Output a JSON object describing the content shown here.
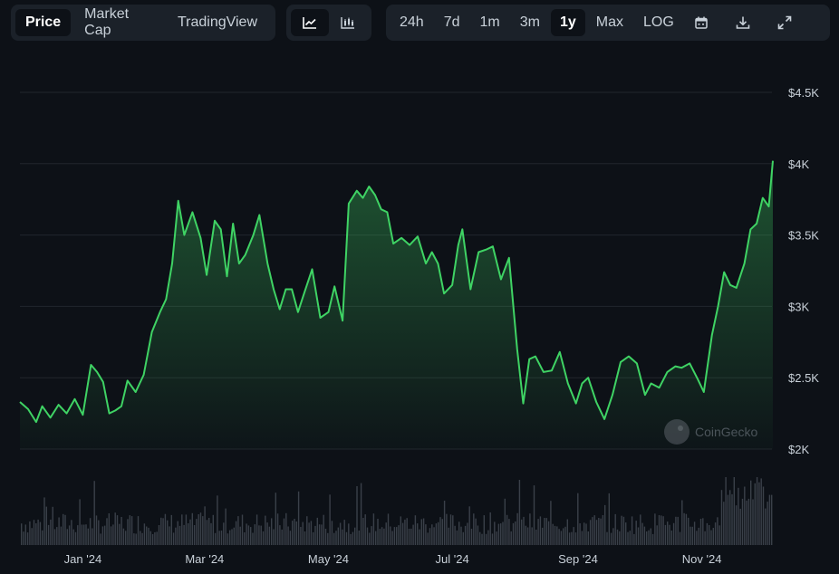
{
  "toolbar": {
    "view_tabs": [
      {
        "label": "Price",
        "active": true
      },
      {
        "label": "Market Cap",
        "active": false
      },
      {
        "label": "TradingView",
        "active": false
      }
    ],
    "chart_styles": [
      {
        "icon": "line-chart-icon",
        "active": true
      },
      {
        "icon": "candlestick-chart-icon",
        "active": false
      }
    ],
    "ranges": [
      {
        "label": "24h",
        "active": false
      },
      {
        "label": "7d",
        "active": false
      },
      {
        "label": "1m",
        "active": false
      },
      {
        "label": "3m",
        "active": false
      },
      {
        "label": "1y",
        "active": true
      },
      {
        "label": "Max",
        "active": false
      },
      {
        "label": "LOG",
        "active": false
      }
    ],
    "actions": [
      "calendar-icon",
      "download-icon",
      "expand-icon"
    ]
  },
  "watermark": "CoinGecko",
  "colors": {
    "background": "#0d1117",
    "line": "#3fd364",
    "grid": "#21262d",
    "volume": "#3a4049"
  },
  "chart_data": {
    "type": "area",
    "title": "",
    "xlabel": "",
    "ylabel": "",
    "ylim": [
      2000,
      4500
    ],
    "yticks": [
      2000,
      2500,
      3000,
      3500,
      4000,
      4500
    ],
    "ytick_labels": [
      "$2K",
      "$2.5K",
      "$3K",
      "$3.5K",
      "$4K",
      "$4.5K"
    ],
    "xtick_labels": [
      "Jan '24",
      "Mar '24",
      "May '24",
      "Jul '24",
      "Sep '24",
      "Nov '24"
    ],
    "xticks": [
      "2024-01-01",
      "2024-03-01",
      "2024-05-01",
      "2024-07-01",
      "2024-09-01",
      "2024-11-01"
    ],
    "xlim": [
      "2023-12-01",
      "2024-12-06"
    ],
    "grid": true,
    "legend": "none",
    "series": [
      {
        "x": [
          "2023-12-01",
          "2023-12-05",
          "2023-12-09",
          "2023-12-12",
          "2023-12-16",
          "2023-12-20",
          "2023-12-24",
          "2023-12-28",
          "2024-01-01",
          "2024-01-05",
          "2024-01-08",
          "2024-01-11",
          "2024-01-14",
          "2024-01-17",
          "2024-01-20",
          "2024-01-23",
          "2024-01-27",
          "2024-01-31",
          "2024-02-04",
          "2024-02-08",
          "2024-02-11",
          "2024-02-14",
          "2024-02-17",
          "2024-02-20",
          "2024-02-24",
          "2024-02-28",
          "2024-03-02",
          "2024-03-06",
          "2024-03-09",
          "2024-03-12",
          "2024-03-15",
          "2024-03-18",
          "2024-03-21",
          "2024-03-25",
          "2024-03-28",
          "2024-04-01",
          "2024-04-04",
          "2024-04-07",
          "2024-04-10",
          "2024-04-13",
          "2024-04-16",
          "2024-04-19",
          "2024-04-23",
          "2024-04-27",
          "2024-05-01",
          "2024-05-04",
          "2024-05-08",
          "2024-05-11",
          "2024-05-15",
          "2024-05-18",
          "2024-05-21",
          "2024-05-24",
          "2024-05-27",
          "2024-05-30",
          "2024-06-02",
          "2024-06-06",
          "2024-06-10",
          "2024-06-14",
          "2024-06-18",
          "2024-06-21",
          "2024-06-24",
          "2024-06-27",
          "2024-07-01",
          "2024-07-04",
          "2024-07-06",
          "2024-07-10",
          "2024-07-14",
          "2024-07-18",
          "2024-07-21",
          "2024-07-25",
          "2024-07-29",
          "2024-08-02",
          "2024-08-05",
          "2024-08-08",
          "2024-08-11",
          "2024-08-15",
          "2024-08-19",
          "2024-08-23",
          "2024-08-27",
          "2024-08-31",
          "2024-09-03",
          "2024-09-06",
          "2024-09-10",
          "2024-09-14",
          "2024-09-18",
          "2024-09-22",
          "2024-09-26",
          "2024-09-30",
          "2024-10-04",
          "2024-10-07",
          "2024-10-11",
          "2024-10-15",
          "2024-10-19",
          "2024-10-22",
          "2024-10-26",
          "2024-10-30",
          "2024-11-02",
          "2024-11-06",
          "2024-11-09",
          "2024-11-12",
          "2024-11-15",
          "2024-11-18",
          "2024-11-22",
          "2024-11-25",
          "2024-11-28",
          "2024-12-01",
          "2024-12-04",
          "2024-12-06"
        ],
        "values": [
          2330,
          2280,
          2190,
          2300,
          2220,
          2310,
          2250,
          2350,
          2240,
          2590,
          2540,
          2470,
          2250,
          2270,
          2300,
          2480,
          2400,
          2520,
          2820,
          2960,
          3050,
          3300,
          3740,
          3500,
          3660,
          3480,
          3220,
          3600,
          3540,
          3210,
          3580,
          3300,
          3360,
          3500,
          3640,
          3300,
          3120,
          2980,
          3120,
          3120,
          2960,
          3090,
          3260,
          2920,
          2960,
          3140,
          2900,
          3720,
          3810,
          3760,
          3840,
          3780,
          3680,
          3660,
          3440,
          3480,
          3430,
          3490,
          3300,
          3380,
          3300,
          3090,
          3150,
          3430,
          3540,
          3120,
          3380,
          3400,
          3420,
          3190,
          3340,
          2700,
          2320,
          2630,
          2650,
          2540,
          2550,
          2680,
          2460,
          2320,
          2460,
          2500,
          2330,
          2210,
          2380,
          2610,
          2650,
          2600,
          2380,
          2460,
          2430,
          2540,
          2580,
          2570,
          2600,
          2490,
          2400,
          2800,
          3000,
          3240,
          3150,
          3130,
          3300,
          3540,
          3580,
          3760,
          3700,
          4020
        ]
      }
    ],
    "volume_note": "relative volume shown as bars, no axis printed"
  }
}
